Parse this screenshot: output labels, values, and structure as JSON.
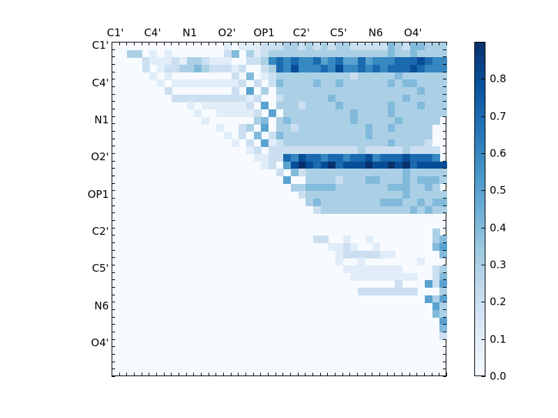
{
  "chart_data": {
    "type": "heatmap",
    "title": "",
    "xlabel": "",
    "ylabel": "",
    "size": 45,
    "tick_labels": [
      "C1'",
      "C4'",
      "N1",
      "O2'",
      "OP1",
      "C2'",
      "C5'",
      "N6",
      "O4'"
    ],
    "tick_label_positions": [
      0,
      5,
      10,
      15,
      20,
      25,
      30,
      35,
      40
    ],
    "x_tick_position": "top",
    "colormap": "Blues",
    "colorbar": {
      "vmin": 0.0,
      "vmax": 0.9,
      "ticks": [
        0.0,
        0.1,
        0.2,
        0.3,
        0.4,
        0.5,
        0.6,
        0.7,
        0.8
      ]
    },
    "matrix_note": "Upper-triangular; each row string gives values for columns 0..44 as digits d meaning d/10 (approx); '.' = 0",
    "rows": [
      "...............1.11122233232323322222432443332",
      "..33.1.1.......24.3123333333333333333433433333",
      "....211121332111..2236767667567557566677787666",
      "....2.122334322212..23768666768667676777876666",
      ".....1.1........2.4.123333333333233333433333333",
      "......1.1111111112.2.243333433433333343443333333",
      ".......2........2.5.3.3333333333333333333433333",
      "........222222222212..23333334333333333433333",
      "..........1.1111112.5.3332333343333334333433332",
      "...........1..111112.5.33333333343333433333333",
      "............1......34.3433333333433333433333",
      "..............1..23.5.332333333333433433333",
      "...............1.2.4.2433333333333433333333",
      "................1.2.51233333333333333433332",
      "..................12.22222222222232222232222",
      "...................1122768776776778677787776",
      "....................12.5898789788898898978888",
      "......................2.423333333333333433333",
      ".......................5..333323334433343444343",
      "........................33444433333334443343",
      ".........................23333333333333433333",
      "..........................34333333334443343443",
      "...........................233333333333343433",
      "...............................................",
      "...............................................",
      "...........................................3.5.",
      "...........................22..1..1........342.",
      ".............................1121..1.......453.",
      "..............................12222211......441",
      "..............................1..1.......1....45",
      "...............................11111111....2354",
      "................................111111111..2443",
      "......................................2...5253.",
      ".................................22222222...3442",
      "..........................................5352",
      "...........................................5353",
      "...........................................4354",
      "............................................5353",
      "............................................4355",
      "............................................2343",
      ".............................................354",
      ".............................................463",
      "..............................................1.",
      "...............................................",
      "..............................................."
    ]
  }
}
